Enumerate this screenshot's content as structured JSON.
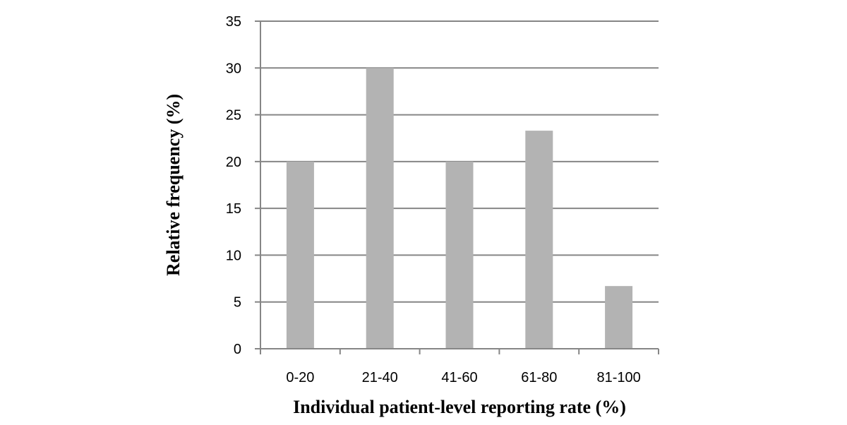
{
  "chart_data": {
    "type": "bar",
    "title": "",
    "xlabel": "Individual patient-level reporting rate (%)",
    "ylabel": "Relative frequency (%)",
    "categories": [
      "0-20",
      "21-40",
      "41-60",
      "61-80",
      "81-100"
    ],
    "values": [
      20,
      30,
      20,
      23.3,
      6.7
    ],
    "ylim": [
      0,
      35
    ],
    "yticks": [
      0,
      5,
      10,
      15,
      20,
      25,
      30,
      35
    ],
    "grid": true,
    "legend": "none",
    "bar_color": "#b3b3b3",
    "grid_color": "#868686"
  }
}
